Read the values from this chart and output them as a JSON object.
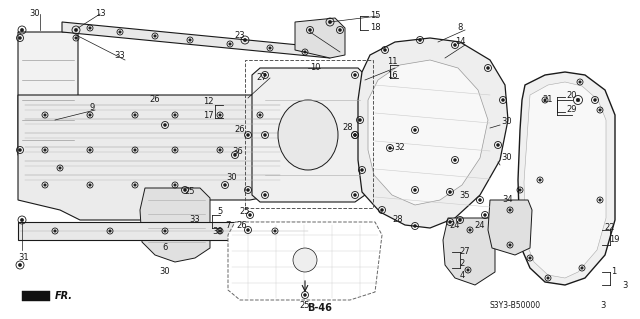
{
  "bg_color": "#ffffff",
  "fig_width": 6.4,
  "fig_height": 3.19,
  "dpi": 100,
  "lc": "#1a1a1a",
  "lw_main": 0.8,
  "lw_thin": 0.4,
  "part_face": "#f0f0f0",
  "part_face2": "#e8e8e8",
  "bottom_text": "S3Y3-B50000",
  "ref_label": "B-46",
  "direction_label": "FR."
}
